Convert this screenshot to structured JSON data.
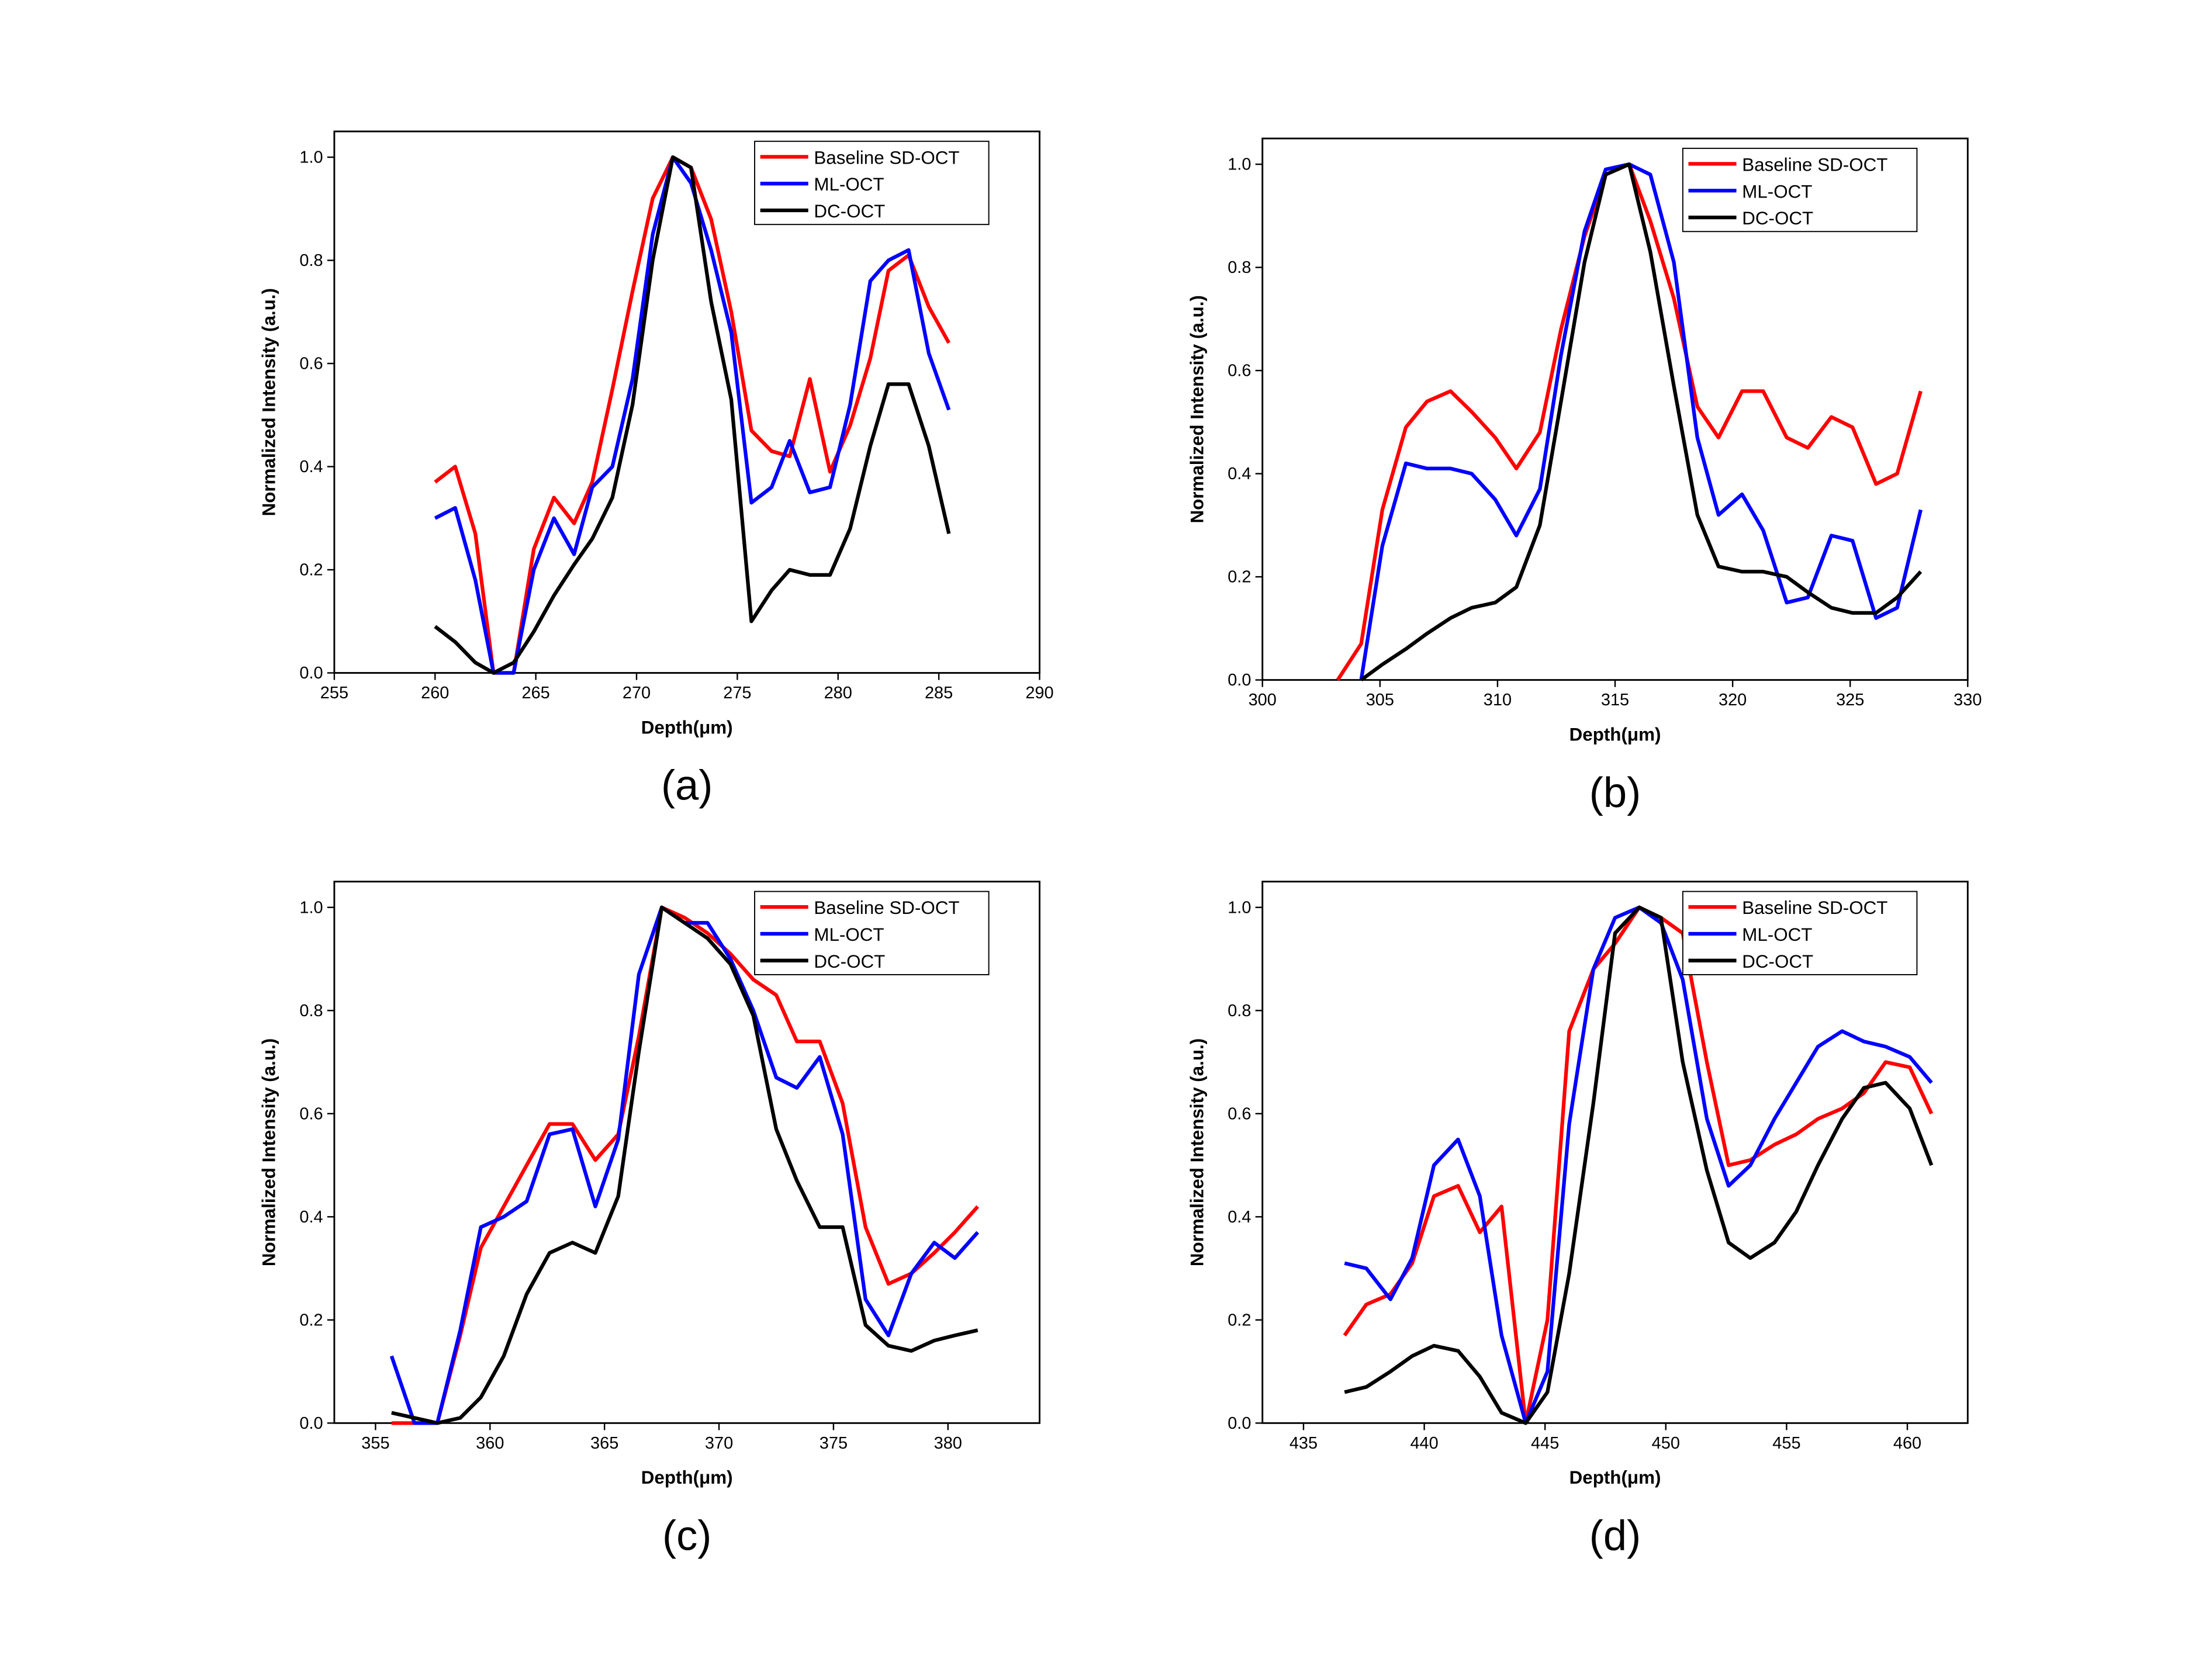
{
  "chart_data": [
    {
      "type": "line",
      "caption": "(a)",
      "xlabel": "Depth(μm)",
      "ylabel": "Normalized Intensity (a.u.)",
      "x": [
        260,
        261,
        262,
        262.9,
        263.9,
        264.9,
        265.9,
        266.9,
        267.8,
        268.8,
        269.8,
        270.8,
        271.8,
        272.7,
        273.7,
        274.7,
        275.7,
        276.7,
        277.6,
        278.6,
        279.6,
        280.6,
        281.6,
        282.5,
        283.5,
        284.5,
        285.5
      ],
      "series": [
        {
          "name": "Baseline SD-OCT",
          "color": "#ff0000",
          "values": [
            0.37,
            0.4,
            0.27,
            0.0,
            0.0,
            0.24,
            0.34,
            0.29,
            0.37,
            0.55,
            0.74,
            0.92,
            1.0,
            0.98,
            0.88,
            0.7,
            0.47,
            0.43,
            0.42,
            0.57,
            0.39,
            0.48,
            0.61,
            0.78,
            0.81,
            0.71,
            0.64
          ]
        },
        {
          "name": "ML-OCT",
          "color": "#0000ff",
          "values": [
            0.3,
            0.32,
            0.18,
            0.0,
            0.0,
            0.2,
            0.3,
            0.23,
            0.36,
            0.4,
            0.57,
            0.85,
            1.0,
            0.95,
            0.82,
            0.66,
            0.33,
            0.36,
            0.45,
            0.35,
            0.36,
            0.52,
            0.76,
            0.8,
            0.82,
            0.62,
            0.51
          ]
        },
        {
          "name": "DC-OCT",
          "color": "#000000",
          "values": [
            0.09,
            0.06,
            0.02,
            0.0,
            0.02,
            0.08,
            0.15,
            0.21,
            0.26,
            0.34,
            0.52,
            0.8,
            1.0,
            0.98,
            0.72,
            0.53,
            0.1,
            0.16,
            0.2,
            0.19,
            0.19,
            0.28,
            0.44,
            0.56,
            0.56,
            0.44,
            0.27
          ]
        }
      ],
      "xlim": [
        255,
        290
      ],
      "xticks": [
        255,
        260,
        265,
        270,
        275,
        280,
        285,
        290
      ],
      "ylim": [
        0,
        1.05
      ],
      "yticks": [
        {
          "value": 0,
          "label": "0.0"
        },
        {
          "value": 0.2,
          "label": "0.2"
        },
        {
          "value": 0.4,
          "label": "0.4"
        },
        {
          "value": 0.6,
          "label": "0.6"
        },
        {
          "value": 0.8,
          "label": "0.8"
        },
        {
          "value": 1,
          "label": "1.0"
        }
      ],
      "legend": "upper right",
      "grid": false
    },
    {
      "type": "line",
      "caption": "(b)",
      "xlabel": "Depth(μm)",
      "ylabel": "Normalized Intensity (a.u.)",
      "x": [
        303.2,
        304.2,
        305.1,
        306.1,
        307.0,
        308.0,
        308.9,
        309.9,
        310.8,
        311.8,
        312.7,
        313.7,
        314.6,
        315.6,
        316.5,
        317.5,
        318.5,
        319.4,
        320.4,
        321.3,
        322.3,
        323.2,
        324.2,
        325.1,
        326.1,
        327.0,
        328.0
      ],
      "series": [
        {
          "name": "Baseline SD-OCT",
          "color": "#ff0000",
          "values": [
            0.0,
            0.07,
            0.33,
            0.49,
            0.54,
            0.56,
            0.52,
            0.47,
            0.41,
            0.48,
            0.68,
            0.86,
            0.98,
            1.0,
            0.89,
            0.74,
            0.53,
            0.47,
            0.56,
            0.56,
            0.47,
            0.45,
            0.51,
            0.49,
            0.38,
            0.4,
            0.56
          ]
        },
        {
          "name": "ML-OCT",
          "color": "#0000ff",
          "values": [
            null,
            0.0,
            0.26,
            0.42,
            0.41,
            0.41,
            0.4,
            0.35,
            0.28,
            0.37,
            0.63,
            0.87,
            0.99,
            1.0,
            0.98,
            0.81,
            0.47,
            0.32,
            0.36,
            0.29,
            0.15,
            0.16,
            0.28,
            0.27,
            0.12,
            0.14,
            0.33
          ]
        },
        {
          "name": "DC-OCT",
          "color": "#000000",
          "values": [
            null,
            0.0,
            0.03,
            0.06,
            0.09,
            0.12,
            0.14,
            0.15,
            0.18,
            0.3,
            0.54,
            0.81,
            0.98,
            1.0,
            0.83,
            0.57,
            0.32,
            0.22,
            0.21,
            0.21,
            0.2,
            0.17,
            0.14,
            0.13,
            0.13,
            0.16,
            0.21
          ]
        }
      ],
      "xlim": [
        300,
        330
      ],
      "xticks": [
        300,
        305,
        310,
        315,
        320,
        325,
        330
      ],
      "ylim": [
        0,
        1.05
      ],
      "yticks": [
        {
          "value": 0,
          "label": "0.0"
        },
        {
          "value": 0.2,
          "label": "0.2"
        },
        {
          "value": 0.4,
          "label": "0.4"
        },
        {
          "value": 0.6,
          "label": "0.6"
        },
        {
          "value": 0.8,
          "label": "0.8"
        },
        {
          "value": 1,
          "label": "1.0"
        }
      ],
      "legend": "upper right",
      "grid": false
    },
    {
      "type": "line",
      "caption": "(c)",
      "xlabel": "Depth(μm)",
      "ylabel": "Normalized Intensity (a.u.)",
      "x": [
        355.7,
        356.7,
        357.7,
        358.7,
        359.6,
        360.6,
        361.6,
        362.6,
        363.6,
        364.6,
        365.6,
        366.5,
        367.5,
        368.5,
        369.5,
        370.5,
        371.5,
        372.5,
        373.4,
        374.4,
        375.4,
        376.4,
        377.4,
        378.4,
        379.4,
        380.3,
        381.3
      ],
      "series": [
        {
          "name": "Baseline SD-OCT",
          "color": "#ff0000",
          "values": [
            0.0,
            0.0,
            0.0,
            0.17,
            0.34,
            0.42,
            0.5,
            0.58,
            0.58,
            0.51,
            0.56,
            0.75,
            1.0,
            0.98,
            0.95,
            0.91,
            0.86,
            0.83,
            0.74,
            0.74,
            0.62,
            0.38,
            0.27,
            0.29,
            0.33,
            0.37,
            0.42
          ]
        },
        {
          "name": "ML-OCT",
          "color": "#0000ff",
          "values": [
            0.13,
            0.0,
            0.0,
            0.18,
            0.38,
            0.4,
            0.43,
            0.56,
            0.57,
            0.42,
            0.55,
            0.87,
            1.0,
            0.97,
            0.97,
            0.9,
            0.8,
            0.67,
            0.65,
            0.71,
            0.56,
            0.24,
            0.17,
            0.29,
            0.35,
            0.32,
            0.37
          ]
        },
        {
          "name": "DC-OCT",
          "color": "#000000",
          "values": [
            0.02,
            0.01,
            0.0,
            0.01,
            0.05,
            0.13,
            0.25,
            0.33,
            0.35,
            0.33,
            0.44,
            0.72,
            1.0,
            0.97,
            0.94,
            0.89,
            0.79,
            0.57,
            0.47,
            0.38,
            0.38,
            0.19,
            0.15,
            0.14,
            0.16,
            0.17,
            0.18
          ]
        }
      ],
      "xlim": [
        353.2,
        384
      ],
      "xticks": [
        355,
        360,
        365,
        370,
        375,
        380
      ],
      "ylim": [
        0,
        1.05
      ],
      "yticks": [
        {
          "value": 0,
          "label": "0.0"
        },
        {
          "value": 0.2,
          "label": "0.2"
        },
        {
          "value": 0.4,
          "label": "0.4"
        },
        {
          "value": 0.6,
          "label": "0.6"
        },
        {
          "value": 0.8,
          "label": "0.8"
        },
        {
          "value": 1,
          "label": "1.0"
        }
      ],
      "legend": "upper right",
      "grid": false
    },
    {
      "type": "line",
      "caption": "(d)",
      "xlabel": "Depth(μm)",
      "ylabel": "Normalized Intensity (a.u.)",
      "x": [
        436.7,
        437.6,
        438.6,
        439.5,
        440.4,
        441.4,
        442.3,
        443.2,
        444.2,
        445.1,
        446.0,
        447.0,
        447.9,
        448.9,
        449.8,
        450.7,
        451.7,
        452.6,
        453.5,
        454.5,
        455.4,
        456.3,
        457.3,
        458.2,
        459.1,
        460.1,
        461.0
      ],
      "series": [
        {
          "name": "Baseline SD-OCT",
          "color": "#ff0000",
          "values": [
            0.17,
            0.23,
            0.25,
            0.31,
            0.44,
            0.46,
            0.37,
            0.42,
            0.0,
            0.2,
            0.76,
            0.88,
            0.93,
            1.0,
            0.98,
            0.95,
            0.7,
            0.5,
            0.51,
            0.54,
            0.56,
            0.59,
            0.61,
            0.64,
            0.7,
            0.69,
            0.6
          ]
        },
        {
          "name": "ML-OCT",
          "color": "#0000ff",
          "values": [
            0.31,
            0.3,
            0.24,
            0.32,
            0.5,
            0.55,
            0.44,
            0.17,
            0.0,
            0.1,
            0.58,
            0.88,
            0.98,
            1.0,
            0.97,
            0.86,
            0.59,
            0.46,
            0.5,
            0.59,
            0.66,
            0.73,
            0.76,
            0.74,
            0.73,
            0.71,
            0.66
          ]
        },
        {
          "name": "DC-OCT",
          "color": "#000000",
          "values": [
            0.06,
            0.07,
            0.1,
            0.13,
            0.15,
            0.14,
            0.09,
            0.02,
            0.0,
            0.06,
            0.29,
            0.62,
            0.95,
            1.0,
            0.98,
            0.7,
            0.49,
            0.35,
            0.32,
            0.35,
            0.41,
            0.5,
            0.59,
            0.65,
            0.66,
            0.61,
            0.5
          ]
        }
      ],
      "xlim": [
        433.3,
        462.5
      ],
      "xticks": [
        435,
        440,
        445,
        450,
        455,
        460
      ],
      "ylim": [
        0,
        1.05
      ],
      "yticks": [
        {
          "value": 0,
          "label": "0.0"
        },
        {
          "value": 0.2,
          "label": "0.2"
        },
        {
          "value": 0.4,
          "label": "0.4"
        },
        {
          "value": 0.6,
          "label": "0.6"
        },
        {
          "value": 0.8,
          "label": "0.8"
        },
        {
          "value": 1,
          "label": "1.0"
        }
      ],
      "legend": "upper right",
      "grid": false
    }
  ]
}
